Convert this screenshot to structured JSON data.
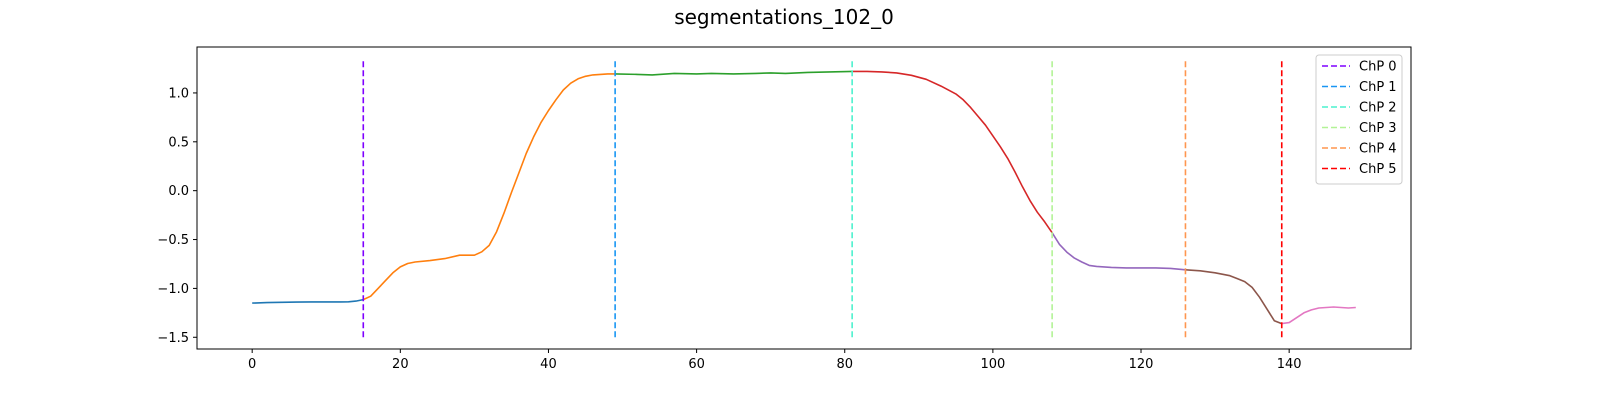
{
  "chart_data": {
    "type": "line",
    "title": "segmentations_102_0",
    "xlabel": "",
    "ylabel": "",
    "xlim": [
      -7.45,
      156.45
    ],
    "ylim": [
      -1.62,
      1.47
    ],
    "xticks": [
      0,
      20,
      40,
      60,
      80,
      100,
      120,
      140
    ],
    "yticks": [
      -1.5,
      -1.0,
      -0.5,
      0.0,
      0.5,
      1.0
    ],
    "ytick_labels": [
      "−1.5",
      "−1.0",
      "−0.5",
      "0.0",
      "0.5",
      "1.0"
    ],
    "grid": false,
    "legend_position": "top-right",
    "segments": [
      {
        "color": "#1f77b4",
        "x": [
          0,
          2,
          4,
          6,
          8,
          10,
          12,
          13,
          14,
          15
        ],
        "y": [
          -1.15,
          -1.145,
          -1.142,
          -1.14,
          -1.138,
          -1.138,
          -1.138,
          -1.137,
          -1.13,
          -1.115
        ]
      },
      {
        "color": "#ff7f0e",
        "x": [
          15,
          16,
          17,
          18,
          19,
          20,
          21,
          22,
          24,
          26,
          28,
          30,
          31,
          32,
          33,
          34,
          35,
          36,
          37,
          38,
          39,
          40,
          41,
          42,
          43,
          44,
          45,
          46,
          47,
          48,
          49
        ],
        "y": [
          -1.115,
          -1.08,
          -1.0,
          -0.92,
          -0.84,
          -0.78,
          -0.745,
          -0.73,
          -0.715,
          -0.695,
          -0.66,
          -0.66,
          -0.625,
          -0.56,
          -0.42,
          -0.23,
          -0.02,
          0.18,
          0.38,
          0.55,
          0.7,
          0.82,
          0.93,
          1.03,
          1.1,
          1.145,
          1.17,
          1.185,
          1.19,
          1.195,
          1.195
        ]
      },
      {
        "color": "#2ca02c",
        "x": [
          49,
          52,
          54,
          57,
          60,
          62,
          65,
          68,
          70,
          72,
          75,
          78,
          81
        ],
        "y": [
          1.195,
          1.19,
          1.185,
          1.2,
          1.195,
          1.2,
          1.195,
          1.2,
          1.205,
          1.2,
          1.21,
          1.215,
          1.22
        ]
      },
      {
        "color": "#d62728",
        "x": [
          81,
          83,
          85,
          87,
          89,
          91,
          93,
          95,
          96,
          97,
          98,
          99,
          100,
          101,
          102,
          103,
          104,
          105,
          106,
          107,
          108
        ],
        "y": [
          1.22,
          1.22,
          1.215,
          1.205,
          1.18,
          1.14,
          1.07,
          0.99,
          0.93,
          0.85,
          0.76,
          0.67,
          0.56,
          0.45,
          0.33,
          0.19,
          0.04,
          -0.1,
          -0.22,
          -0.32,
          -0.43
        ]
      },
      {
        "color": "#9467bd",
        "x": [
          108,
          109,
          110,
          111,
          112,
          113,
          114,
          116,
          118,
          120,
          122,
          124,
          126
        ],
        "y": [
          -0.43,
          -0.55,
          -0.63,
          -0.69,
          -0.73,
          -0.765,
          -0.775,
          -0.785,
          -0.79,
          -0.79,
          -0.79,
          -0.795,
          -0.81
        ]
      },
      {
        "color": "#8c564b",
        "x": [
          126,
          128,
          130,
          132,
          133,
          134,
          135,
          136,
          137,
          138,
          139
        ],
        "y": [
          -0.81,
          -0.82,
          -0.84,
          -0.87,
          -0.9,
          -0.93,
          -0.99,
          -1.09,
          -1.21,
          -1.33,
          -1.36
        ]
      },
      {
        "color": "#e377c2",
        "x": [
          139,
          140,
          141,
          142,
          143,
          144,
          145,
          146,
          147,
          148,
          149
        ],
        "y": [
          -1.36,
          -1.35,
          -1.3,
          -1.25,
          -1.22,
          -1.2,
          -1.195,
          -1.19,
          -1.195,
          -1.2,
          -1.195
        ]
      }
    ],
    "changepoints": [
      {
        "name": "ChP 0",
        "x": 15,
        "color": "#7f00ff"
      },
      {
        "name": "ChP 1",
        "x": 49,
        "color": "#1996f3"
      },
      {
        "name": "ChP 2",
        "x": 81,
        "color": "#4cf2ce"
      },
      {
        "name": "ChP 3",
        "x": 108,
        "color": "#b2f396"
      },
      {
        "name": "ChP 4",
        "x": 126,
        "color": "#ff964f"
      },
      {
        "name": "ChP 5",
        "x": 139,
        "color": "#ff0000"
      }
    ],
    "changepoint_span": [
      -1.5,
      1.35
    ]
  }
}
